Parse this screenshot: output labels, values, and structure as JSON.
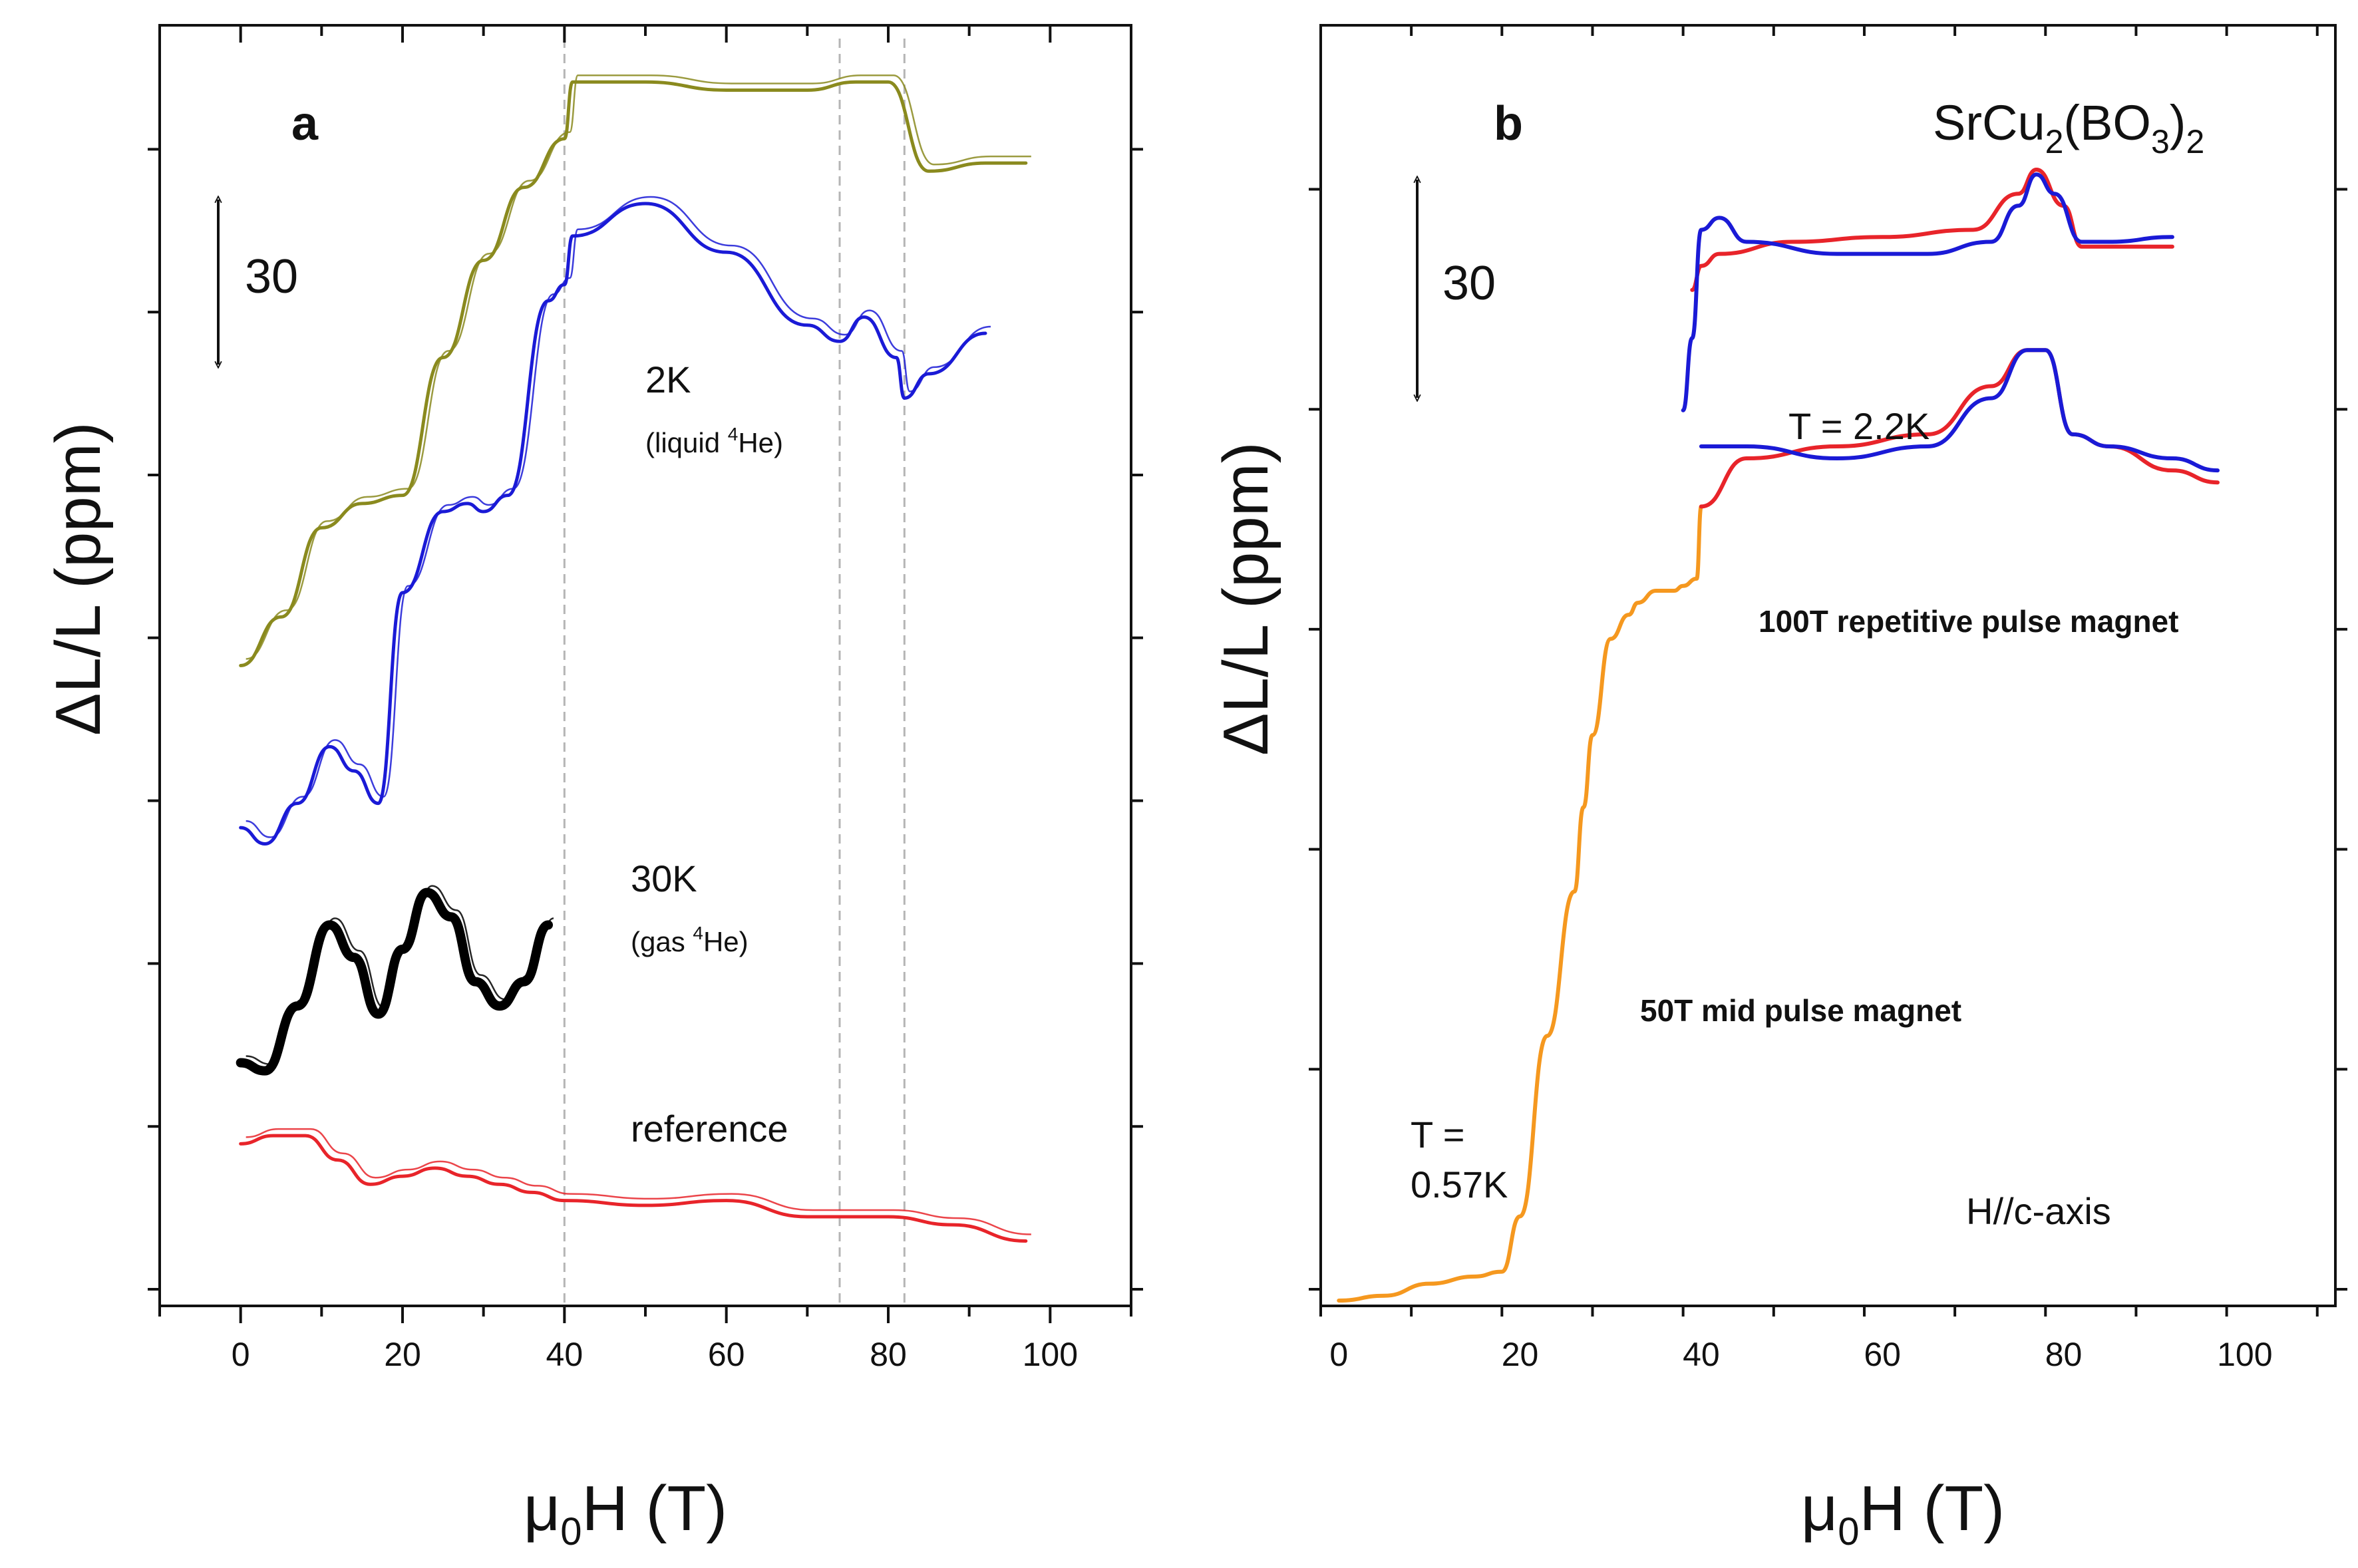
{
  "chart_data": [
    {
      "panel": "a",
      "type": "line",
      "xlabel": "μ0H (T)",
      "ylabel": "ΔL/L (ppm)",
      "xlim": [
        -10,
        110
      ],
      "xticks": [
        0,
        20,
        40,
        60,
        80,
        100
      ],
      "ylim": [
        0,
        7.9
      ],
      "scale_bar_value": "30",
      "vlines_x": [
        40,
        74,
        82
      ],
      "series": [
        {
          "name": "2K (liquid 4He) upper",
          "color": "#8a8a1e",
          "x": [
            0,
            5,
            10,
            15,
            20,
            25,
            30,
            35,
            40,
            41,
            50,
            60,
            70,
            76,
            80,
            85,
            92,
            97
          ],
          "y": [
            3.95,
            4.25,
            4.8,
            4.95,
            5.0,
            5.85,
            6.45,
            6.9,
            7.2,
            7.55,
            7.55,
            7.5,
            7.5,
            7.55,
            7.55,
            7.0,
            7.05,
            7.05
          ]
        },
        {
          "name": "2K (liquid 4He)",
          "color": "#1a1ad6",
          "x": [
            0,
            3,
            7,
            11,
            14,
            17,
            20,
            25,
            28,
            30,
            33,
            38,
            40,
            41,
            50,
            60,
            70,
            74,
            77,
            81,
            82,
            85,
            92
          ],
          "y": [
            2.95,
            2.85,
            3.1,
            3.45,
            3.3,
            3.1,
            4.4,
            4.9,
            4.95,
            4.9,
            5.0,
            6.2,
            6.3,
            6.6,
            6.8,
            6.5,
            6.05,
            5.95,
            6.1,
            5.85,
            5.6,
            5.75,
            6.0
          ]
        },
        {
          "name": "30K (gas 4He)",
          "color": "#000000",
          "x": [
            0,
            3,
            7,
            11,
            14,
            17,
            20,
            23,
            26,
            29,
            32,
            35,
            38
          ],
          "y": [
            1.5,
            1.45,
            1.85,
            2.35,
            2.15,
            1.8,
            2.2,
            2.55,
            2.4,
            2.0,
            1.85,
            2.0,
            2.35
          ]
        },
        {
          "name": "reference",
          "color": "#e8242a",
          "x": [
            0,
            4,
            8,
            12,
            16,
            20,
            24,
            28,
            32,
            36,
            40,
            50,
            60,
            70,
            80,
            88,
            97
          ],
          "y": [
            1.0,
            1.05,
            1.05,
            0.9,
            0.75,
            0.8,
            0.85,
            0.8,
            0.75,
            0.7,
            0.65,
            0.62,
            0.65,
            0.55,
            0.55,
            0.5,
            0.4
          ]
        }
      ],
      "labels": {
        "panel_letter": "a",
        "label_2k": "2K",
        "label_2k_sub": "(liquid",
        "label_2k_sup": "4",
        "label_2k_end": "He)",
        "label_30k": "30K",
        "label_30k_sub": "(gas",
        "label_30k_sup": "4",
        "label_30k_end": "He)",
        "label_reference": "reference"
      }
    },
    {
      "panel": "b",
      "type": "line",
      "xlabel": "μ0H (T)",
      "ylabel": "ΔL/L (ppm)",
      "xlim": [
        -2,
        110
      ],
      "xticks": [
        0,
        20,
        40,
        60,
        80,
        100
      ],
      "ylim": [
        0,
        5.3
      ],
      "scale_bar_value": "30",
      "series": [
        {
          "name": "50T mid pulse magnet, T = 0.57K",
          "color": "#f5981f",
          "x": [
            0,
            5,
            10,
            15,
            18,
            20,
            23,
            26,
            27,
            28,
            30,
            32,
            33,
            35,
            37,
            38,
            39.5,
            40
          ],
          "y": [
            0.0,
            0.02,
            0.07,
            0.1,
            0.12,
            0.35,
            1.1,
            1.7,
            2.05,
            2.35,
            2.75,
            2.85,
            2.9,
            2.95,
            2.95,
            2.97,
            3.0,
            3.3
          ]
        },
        {
          "name": "100T repetitive, lower, red",
          "color": "#e8242a",
          "x": [
            40,
            45,
            55,
            65,
            72,
            76,
            78,
            81,
            85,
            92,
            97
          ],
          "y": [
            3.3,
            3.5,
            3.55,
            3.6,
            3.8,
            3.95,
            3.95,
            3.6,
            3.55,
            3.45,
            3.4
          ]
        },
        {
          "name": "100T repetitive, lower, blue",
          "color": "#1a1ad6",
          "x": [
            40,
            45,
            55,
            65,
            72,
            76,
            78,
            81,
            85,
            92,
            97
          ],
          "y": [
            3.55,
            3.55,
            3.5,
            3.55,
            3.75,
            3.95,
            3.95,
            3.6,
            3.55,
            3.5,
            3.45
          ]
        },
        {
          "name": "100T repetitive, upper, red (T = 2.2K)",
          "color": "#e8242a",
          "x": [
            39,
            40,
            42,
            50,
            60,
            70,
            75,
            77,
            80,
            82,
            85,
            92
          ],
          "y": [
            4.2,
            4.3,
            4.35,
            4.4,
            4.42,
            4.45,
            4.6,
            4.7,
            4.55,
            4.38,
            4.38,
            4.38
          ]
        },
        {
          "name": "100T repetitive, upper, blue (T = 2.2K)",
          "color": "#1a1ad6",
          "x": [
            38,
            39,
            40,
            42,
            45,
            55,
            65,
            72,
            75,
            77,
            79,
            82,
            85,
            92
          ],
          "y": [
            3.7,
            4.0,
            4.45,
            4.5,
            4.4,
            4.35,
            4.35,
            4.4,
            4.55,
            4.68,
            4.6,
            4.4,
            4.4,
            4.42
          ]
        }
      ],
      "labels": {
        "panel_letter": "b",
        "formula_main": "SrCu",
        "formula_sub1": "2",
        "formula_mid": "(BO",
        "formula_sub2": "3",
        "formula_close": ")",
        "formula_sub3": "2",
        "label_t22": "T = 2.2K",
        "label_100t": "100T repetitive pulse magnet",
        "label_50t": "50T mid pulse magnet",
        "label_t057_line1": "T =",
        "label_t057_line2": "0.57K",
        "label_hc": "H//c-axis"
      }
    }
  ],
  "axis_text": {
    "ylabel": "ΔL/L (ppm)",
    "xlabel_mu": "μ",
    "xlabel_sub": "0",
    "xlabel_rest": "H (T)"
  }
}
